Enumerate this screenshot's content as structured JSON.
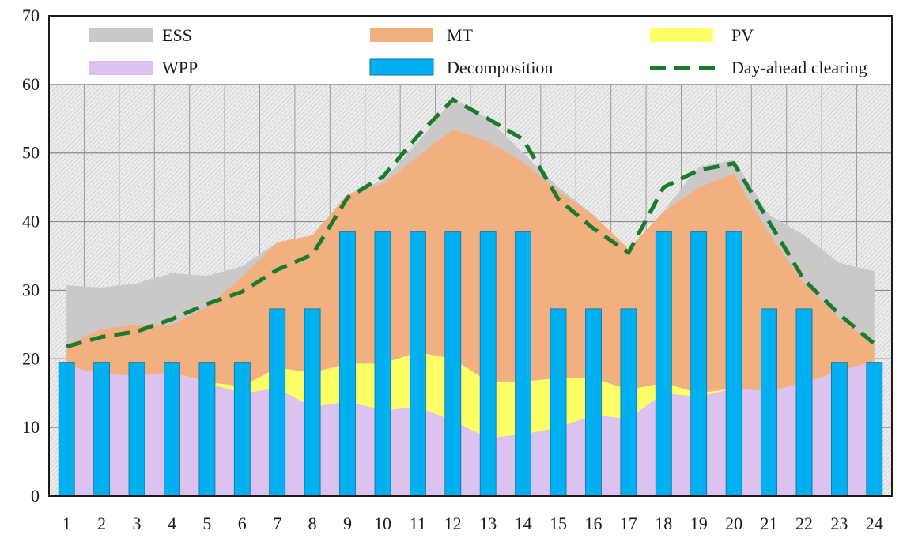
{
  "chart_data": {
    "type": "area",
    "title": "",
    "xlabel": "",
    "ylabel": "",
    "categories": [
      "1",
      "2",
      "3",
      "4",
      "5",
      "6",
      "7",
      "8",
      "9",
      "10",
      "11",
      "12",
      "13",
      "14",
      "15",
      "16",
      "17",
      "18",
      "19",
      "20",
      "21",
      "22",
      "23",
      "24"
    ],
    "x": [
      1,
      2,
      3,
      4,
      5,
      6,
      7,
      8,
      9,
      10,
      11,
      12,
      13,
      14,
      15,
      16,
      17,
      18,
      19,
      20,
      21,
      22,
      23,
      24
    ],
    "ylim": [
      0,
      70
    ],
    "yticks": [
      "0",
      "10",
      "20",
      "30",
      "40",
      "50",
      "60",
      "70"
    ],
    "hatched_band": [
      0,
      60
    ],
    "legend_position": "top",
    "stacked_areas": [
      {
        "name": "WPP",
        "color": "#dcc2ee",
        "values": [
          19,
          17.8,
          17.5,
          18,
          16.5,
          15,
          15.7,
          13,
          13.8,
          12.5,
          13,
          11,
          8.5,
          9,
          10,
          11.8,
          11.3,
          15,
          14.5,
          15.7,
          15.3,
          16.5,
          18.2,
          19.7
        ]
      },
      {
        "name": "PV",
        "color": "#ffff66",
        "values": [
          0,
          0,
          0,
          0,
          0.1,
          1,
          3,
          5,
          5.5,
          6.8,
          8,
          9,
          8.2,
          7.7,
          7.2,
          5.4,
          4.2,
          1.5,
          0.5,
          0,
          0,
          0,
          0,
          0
        ]
      },
      {
        "name": "MT",
        "color": "#f2b081",
        "values": [
          3,
          6.6,
          7.5,
          7,
          11,
          16,
          18.3,
          20,
          24.7,
          26.2,
          28.5,
          33.5,
          35,
          32,
          27.3,
          23.8,
          20.5,
          25,
          30,
          31.3,
          23,
          14.5,
          7.8,
          2.3
        ]
      },
      {
        "name": "ESS",
        "color": "#cbc8c8",
        "values": [
          8.7,
          6,
          6,
          7.5,
          4.5,
          1.5,
          0,
          0,
          0,
          0.5,
          2,
          4.5,
          3.3,
          1.3,
          0.5,
          0,
          0,
          0,
          3,
          2,
          2.7,
          7,
          8,
          10.8
        ]
      }
    ],
    "bar_series": {
      "name": "Decomposition",
      "color": "#00b0f0",
      "values": [
        19.5,
        19.5,
        19.5,
        19.5,
        19.5,
        19.5,
        27.3,
        27.3,
        38.5,
        38.5,
        38.5,
        38.5,
        38.5,
        38.5,
        27.3,
        27.3,
        27.3,
        38.5,
        38.5,
        38.5,
        27.3,
        27.3,
        19.5,
        19.5
      ]
    },
    "line_series": {
      "name": "Day-ahead clearing",
      "color": "#1b7a2c",
      "style": "dashed",
      "values": [
        21.8,
        23.2,
        24,
        25.8,
        28,
        29.8,
        33,
        35.2,
        43.5,
        46.5,
        52.5,
        57.8,
        55,
        52,
        43.3,
        39,
        35.5,
        45,
        47.5,
        48.5,
        40,
        31.5,
        26.5,
        22.2
      ]
    }
  },
  "legend": {
    "ess": "ESS",
    "mt": "MT",
    "pv": "PV",
    "wpp": "WPP",
    "decomposition": "Decomposition",
    "day_ahead": "Day-ahead clearing"
  }
}
